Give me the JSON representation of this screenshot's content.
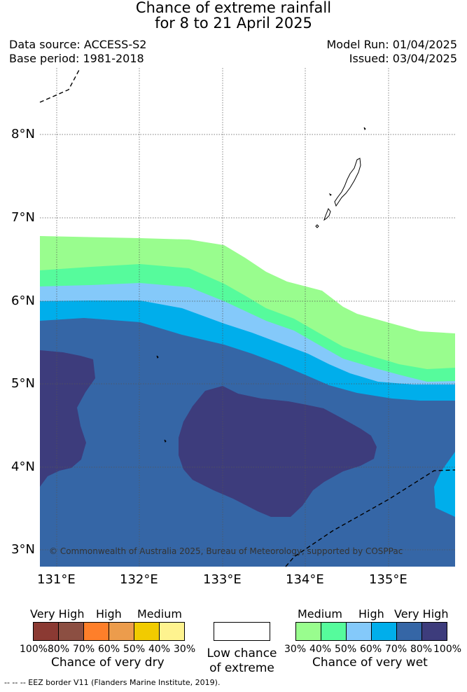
{
  "title_line1": "Chance of extreme rainfall",
  "title_line2": "for 8 to 21 April 2025",
  "data_source": "Data source: ACCESS-S2",
  "base_period": "Base period: 1981-2018",
  "model_run": "Model Run: 01/04/2025",
  "issued": "Issued: 03/04/2025",
  "lat_labels": [
    "8°N",
    "7°N",
    "6°N",
    "5°N",
    "4°N",
    "3°N"
  ],
  "lon_labels": [
    "131°E",
    "132°E",
    "133°E",
    "134°E",
    "135°E"
  ],
  "copyright": "© Commonwealth of Australia 2025, Bureau of Meteorology, supported by COSPPac",
  "colors": {
    "dry": [
      "#8b3a33",
      "#8c4f42",
      "#fe7f2a",
      "#ec9c4c",
      "#f1cb00",
      "#fef38f"
    ],
    "wet": [
      "#99fd8e",
      "#56fb9c",
      "#84c9fa",
      "#00aeeb",
      "#3566a6",
      "#3d3c7c"
    ],
    "low": "#ffffff"
  },
  "legend_dry": {
    "categories": [
      "Very High",
      "High",
      "Medium"
    ],
    "ticks": [
      "100%",
      "80%",
      "70%",
      "60%",
      "50%",
      "40%",
      "30%"
    ],
    "caption": "Chance of very dry"
  },
  "legend_low": {
    "line1": "Low chance",
    "line2": "of extreme"
  },
  "legend_wet": {
    "categories": [
      "Medium",
      "High",
      "Very High"
    ],
    "ticks": [
      "30%",
      "40%",
      "50%",
      "60%",
      "70%",
      "80%",
      "100%"
    ],
    "caption": "Chance of very wet"
  },
  "footer": "--  --  -- EEZ border V11 (Flanders Marine Institute, 2019)."
}
